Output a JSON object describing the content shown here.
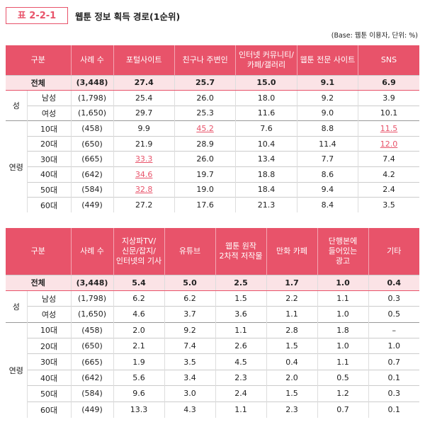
{
  "header": {
    "number": "표 2-2-1",
    "title": "웹툰 정보 획득 경로(1순위)",
    "note": "(Base: 웹툰 이용자, 단위: %)"
  },
  "tables": [
    {
      "columns": [
        [
          "구분"
        ],
        [
          "사례 수"
        ],
        [
          "포털사이트"
        ],
        [
          "친구나 주변인"
        ],
        [
          "인터넷 커뮤니티/",
          "카페/갤러리"
        ],
        [
          "웹툰 전문 사이트"
        ],
        [
          "SNS"
        ]
      ],
      "sections": [
        {
          "rows": [
            {
              "label": "전체",
              "n": "(3,448)",
              "values": [
                "27.4",
                "25.7",
                "15.0",
                "9.1",
                "6.9"
              ]
            }
          ]
        },
        {
          "group": "성",
          "rows": [
            {
              "label": "남성",
              "n": "(1,798)",
              "values": [
                "25.4",
                "26.0",
                "18.0",
                "9.2",
                "3.9"
              ]
            },
            {
              "label": "여성",
              "n": "(1,650)",
              "values": [
                "29.7",
                "25.3",
                "11.6",
                "9.0",
                "10.1"
              ]
            }
          ]
        },
        {
          "group": "연령",
          "rows": [
            {
              "label": "10대",
              "n": "(458)",
              "values": [
                "9.9",
                "45.2",
                "7.6",
                "8.8",
                "11.5"
              ],
              "highlight": [
                1,
                4
              ]
            },
            {
              "label": "20대",
              "n": "(650)",
              "values": [
                "21.9",
                "28.9",
                "10.4",
                "11.4",
                "12.0"
              ],
              "highlight": [
                4
              ]
            },
            {
              "label": "30대",
              "n": "(665)",
              "values": [
                "33.3",
                "26.0",
                "13.4",
                "7.7",
                "7.4"
              ],
              "highlight": [
                0
              ]
            },
            {
              "label": "40대",
              "n": "(642)",
              "values": [
                "34.6",
                "19.7",
                "18.8",
                "8.6",
                "4.2"
              ],
              "highlight": [
                0
              ]
            },
            {
              "label": "50대",
              "n": "(584)",
              "values": [
                "32.8",
                "19.0",
                "18.4",
                "9.4",
                "2.4"
              ],
              "highlight": [
                0
              ]
            },
            {
              "label": "60대",
              "n": "(449)",
              "values": [
                "27.2",
                "17.6",
                "21.3",
                "8.4",
                "3.5"
              ]
            }
          ]
        }
      ]
    },
    {
      "columns": [
        [
          "구분"
        ],
        [
          "사례 수"
        ],
        [
          "지상파TV/",
          "신문/잡지/",
          "인터넷의 기사"
        ],
        [
          "유튜브"
        ],
        [
          "웹툰 원작",
          "2차적 저작물"
        ],
        [
          "만화 카페"
        ],
        [
          "단행본에",
          "들어있는",
          "광고"
        ],
        [
          "기타"
        ]
      ],
      "sections": [
        {
          "rows": [
            {
              "label": "전체",
              "n": "(3,448)",
              "values": [
                "5.4",
                "5.0",
                "2.5",
                "1.7",
                "1.0",
                "0.4"
              ]
            }
          ]
        },
        {
          "group": "성",
          "rows": [
            {
              "label": "남성",
              "n": "(1,798)",
              "values": [
                "6.2",
                "6.2",
                "1.5",
                "2.2",
                "1.1",
                "0.3"
              ]
            },
            {
              "label": "여성",
              "n": "(1,650)",
              "values": [
                "4.6",
                "3.7",
                "3.6",
                "1.1",
                "1.0",
                "0.5"
              ]
            }
          ]
        },
        {
          "group": "연령",
          "rows": [
            {
              "label": "10대",
              "n": "(458)",
              "values": [
                "2.0",
                "9.2",
                "1.1",
                "2.8",
                "1.8",
                "–"
              ]
            },
            {
              "label": "20대",
              "n": "(650)",
              "values": [
                "2.1",
                "7.4",
                "2.6",
                "1.5",
                "1.0",
                "1.0"
              ]
            },
            {
              "label": "30대",
              "n": "(665)",
              "values": [
                "1.9",
                "3.5",
                "4.5",
                "0.4",
                "1.1",
                "0.7"
              ]
            },
            {
              "label": "40대",
              "n": "(642)",
              "values": [
                "5.6",
                "3.4",
                "2.3",
                "2.0",
                "0.5",
                "0.1"
              ]
            },
            {
              "label": "50대",
              "n": "(584)",
              "values": [
                "9.6",
                "3.0",
                "2.4",
                "1.5",
                "1.2",
                "0.3"
              ]
            },
            {
              "label": "60대",
              "n": "(449)",
              "values": [
                "13.3",
                "4.3",
                "1.1",
                "2.3",
                "0.7",
                "0.1"
              ]
            }
          ]
        }
      ]
    }
  ]
}
